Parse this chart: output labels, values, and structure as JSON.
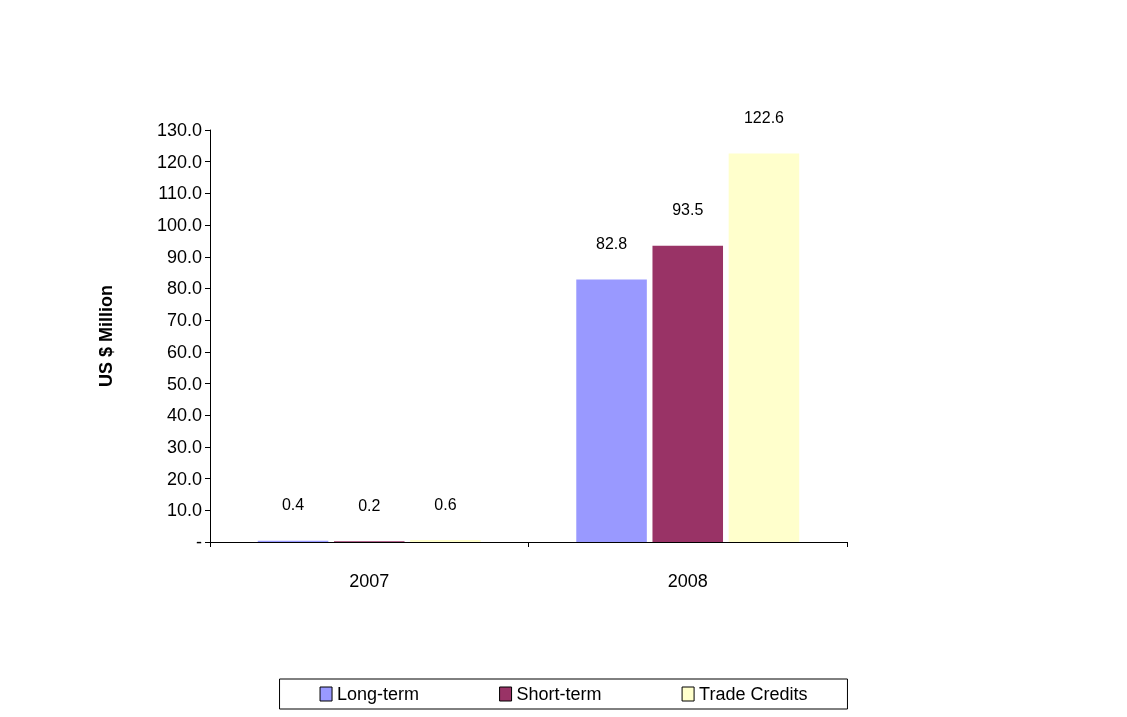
{
  "chart_data": {
    "type": "bar",
    "ylabel": "US $ Million",
    "categories": [
      "2007",
      "2008"
    ],
    "series": [
      {
        "name": "Long-term",
        "color": "#9999ff",
        "values": [
          0.4,
          82.8
        ]
      },
      {
        "name": "Short-term",
        "color": "#993366",
        "values": [
          0.2,
          93.5
        ]
      },
      {
        "name": "Trade Credits",
        "color": "#ffffcc",
        "values": [
          0.6,
          122.6
        ]
      }
    ],
    "ylim": [
      0,
      130
    ],
    "yticks": [
      {
        "value": 0,
        "label": "-"
      },
      {
        "value": 10,
        "label": "10.0"
      },
      {
        "value": 20,
        "label": "20.0"
      },
      {
        "value": 30,
        "label": "30.0"
      },
      {
        "value": 40,
        "label": "40.0"
      },
      {
        "value": 50,
        "label": "50.0"
      },
      {
        "value": 60,
        "label": "60.0"
      },
      {
        "value": 70,
        "label": "70.0"
      },
      {
        "value": 80,
        "label": "80.0"
      },
      {
        "value": 90,
        "label": "90.0"
      },
      {
        "value": 100,
        "label": "100.0"
      },
      {
        "value": 110,
        "label": "110.0"
      },
      {
        "value": 120,
        "label": "120.0"
      },
      {
        "value": 130,
        "label": "130.0"
      }
    ],
    "data_labels": true,
    "grid": false,
    "legend": "bottom"
  }
}
